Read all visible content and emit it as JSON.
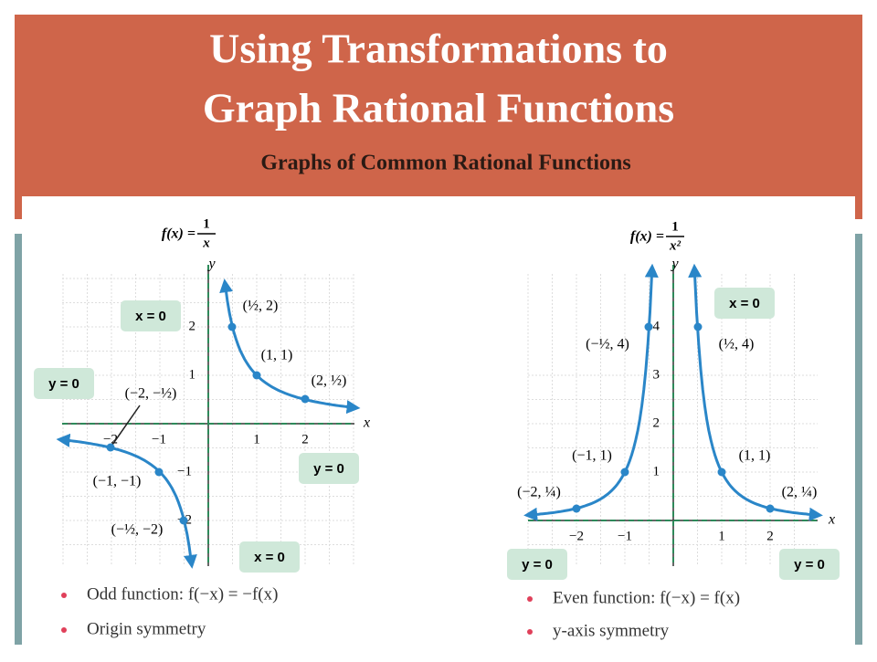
{
  "header": {
    "title_lines": [
      "Using  Transformations to",
      "Graph Rational Functions"
    ],
    "subtitle": "Graphs of Common Rational Functions"
  },
  "panels": [
    {
      "formula": {
        "lhs": "f(x) =",
        "numerator": "1",
        "denominator": "x"
      },
      "axis_labels": {
        "x": "x",
        "y": "y"
      },
      "x_ticks": [
        "−2",
        "−1",
        "1",
        "2"
      ],
      "y_ticks": [
        "2",
        "1",
        "−1",
        "−2"
      ],
      "points": [
        "(½, 2)",
        "(1, 1)",
        "(2, ½)",
        "(−2, −½)",
        "(−1, −1)",
        "(−½, −2)"
      ],
      "asymptote_labels": [
        "x = 0",
        "y = 0",
        "y = 0",
        "x = 0"
      ],
      "bullets": [
        "Odd function: f(−x) = −f(x)",
        "Origin symmetry"
      ]
    },
    {
      "formula": {
        "lhs": "f(x) =",
        "numerator": "1",
        "denominator": "x²"
      },
      "axis_labels": {
        "x": "x",
        "y": "y"
      },
      "x_ticks": [
        "−2",
        "−1",
        "1",
        "2"
      ],
      "y_ticks": [
        "4",
        "3",
        "2",
        "1"
      ],
      "points": [
        "(−½, 4)",
        "(½, 4)",
        "(−1, 1)",
        "(1, 1)",
        "(−2, ¼)",
        "(2, ¼)"
      ],
      "asymptote_labels": [
        "x = 0",
        "y = 0",
        "y = 0"
      ],
      "bullets": [
        "Even function: f(−x) = f(x)",
        "y-axis symmetry"
      ]
    }
  ]
}
